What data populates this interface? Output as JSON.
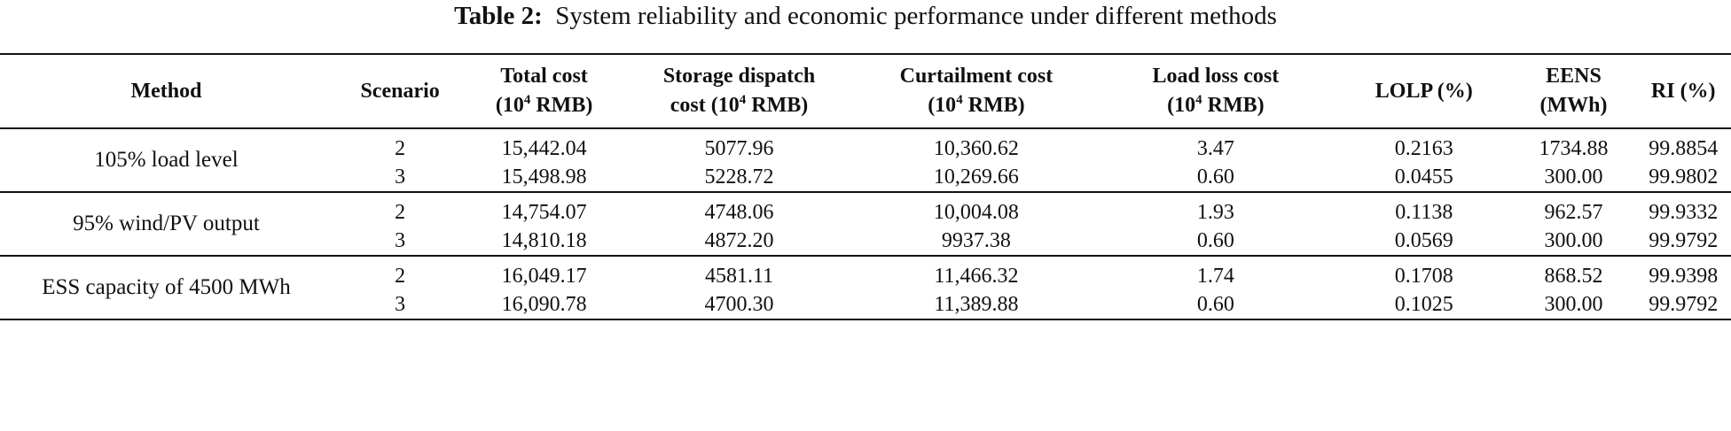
{
  "caption": {
    "label": "Table 2:",
    "text": "System reliability and economic performance under different methods"
  },
  "columns": [
    {
      "line1": "Method",
      "line2": ""
    },
    {
      "line1": "Scenario",
      "line2": ""
    },
    {
      "line1": "Total cost",
      "line2_pre": "(10",
      "sup": "4",
      "line2_post": " RMB)"
    },
    {
      "line1": "Storage dispatch",
      "line2_pre": "cost (10",
      "sup": "4",
      "line2_post": " RMB)"
    },
    {
      "line1": "Curtailment cost",
      "line2_pre": "(10",
      "sup": "4",
      "line2_post": " RMB)"
    },
    {
      "line1": "Load loss cost",
      "line2_pre": "(10",
      "sup": "4",
      "line2_post": " RMB)"
    },
    {
      "line1": "LOLP (%)",
      "line2": ""
    },
    {
      "line1": "EENS",
      "line2": "(MWh)"
    },
    {
      "line1": "RI (%)",
      "line2": ""
    }
  ],
  "groups": [
    {
      "method": "105% load level",
      "rows": [
        [
          "2",
          "15,442.04",
          "5077.96",
          "10,360.62",
          "3.47",
          "0.2163",
          "1734.88",
          "99.8854"
        ],
        [
          "3",
          "15,498.98",
          "5228.72",
          "10,269.66",
          "0.60",
          "0.0455",
          "300.00",
          "99.9802"
        ]
      ]
    },
    {
      "method": "95% wind/PV output",
      "rows": [
        [
          "2",
          "14,754.07",
          "4748.06",
          "10,004.08",
          "1.93",
          "0.1138",
          "962.57",
          "99.9332"
        ],
        [
          "3",
          "14,810.18",
          "4872.20",
          "9937.38",
          "0.60",
          "0.0569",
          "300.00",
          "99.9792"
        ]
      ]
    },
    {
      "method": "ESS capacity of 4500 MWh",
      "rows": [
        [
          "2",
          "16,049.17",
          "4581.11",
          "11,466.32",
          "1.74",
          "0.1708",
          "868.52",
          "99.9398"
        ],
        [
          "3",
          "16,090.78",
          "4700.30",
          "11,389.88",
          "0.60",
          "0.1025",
          "300.00",
          "99.9792"
        ]
      ]
    }
  ]
}
